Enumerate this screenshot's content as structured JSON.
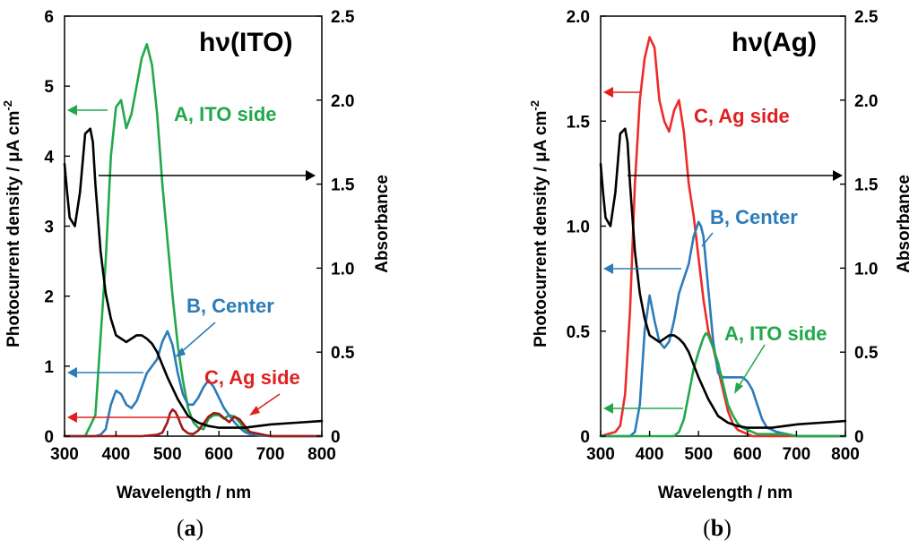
{
  "chart_data": [
    {
      "type": "line",
      "panel": "a",
      "panel_label_open": "(",
      "panel_label_letter": "a",
      "panel_label_close": ")",
      "title": "hν(ITO)",
      "xlabel": "Wavelength / nm",
      "ylabel": "Photocurrent density / μA cm",
      "ylabel_superscript": "-2",
      "y2label": "Absorbance",
      "xlim": [
        300,
        800
      ],
      "ylim": [
        0,
        6
      ],
      "y2lim": [
        0,
        2.5
      ],
      "xticks": [
        "300",
        "400",
        "500",
        "600",
        "700",
        "800"
      ],
      "yticks": [
        "0",
        "1",
        "2",
        "3",
        "4",
        "5",
        "6"
      ],
      "y2ticks": [
        "0",
        "0.5",
        "1.0",
        "1.5",
        "2.0",
        "2.5"
      ],
      "series": [
        {
          "name": "A, ITO side",
          "color": "#22a84a",
          "axis": "left",
          "x": [
            300,
            340,
            360,
            380,
            390,
            400,
            410,
            420,
            430,
            440,
            450,
            460,
            470,
            480,
            490,
            500,
            510,
            520,
            530,
            540,
            550,
            560,
            570,
            580,
            590,
            600,
            610,
            620,
            630,
            640,
            650,
            660,
            680,
            700,
            800
          ],
          "y": [
            0,
            0,
            0.3,
            2.5,
            4.0,
            4.7,
            4.8,
            4.4,
            4.6,
            5.0,
            5.4,
            5.6,
            5.3,
            4.6,
            3.6,
            2.8,
            2.0,
            1.3,
            0.8,
            0.4,
            0.2,
            0.12,
            0.1,
            0.25,
            0.3,
            0.3,
            0.25,
            0.3,
            0.28,
            0.2,
            0.1,
            0.05,
            0.02,
            0,
            0
          ]
        },
        {
          "name": "B, Center",
          "color": "#2b7cb8",
          "axis": "left",
          "x": [
            300,
            360,
            370,
            380,
            390,
            400,
            410,
            420,
            430,
            440,
            450,
            460,
            470,
            480,
            490,
            500,
            510,
            520,
            530,
            540,
            550,
            560,
            570,
            580,
            590,
            600,
            610,
            620,
            630,
            640,
            650,
            660,
            680,
            700,
            800
          ],
          "y": [
            0,
            0,
            0.02,
            0.1,
            0.45,
            0.65,
            0.6,
            0.45,
            0.4,
            0.5,
            0.7,
            0.9,
            1.0,
            1.1,
            1.35,
            1.5,
            1.3,
            0.9,
            0.6,
            0.45,
            0.45,
            0.55,
            0.7,
            0.8,
            0.7,
            0.55,
            0.4,
            0.3,
            0.2,
            0.12,
            0.06,
            0.03,
            0.01,
            0,
            0
          ]
        },
        {
          "name": "C, Ag side",
          "color": "#a01818",
          "axis": "left",
          "x": [
            300,
            400,
            450,
            480,
            490,
            500,
            505,
            510,
            515,
            520,
            525,
            530,
            540,
            550,
            560,
            570,
            580,
            590,
            600,
            610,
            620,
            630,
            640,
            650,
            660,
            700,
            800
          ],
          "y": [
            0,
            0,
            0,
            0.02,
            0.05,
            0.2,
            0.33,
            0.38,
            0.35,
            0.28,
            0.18,
            0.1,
            0.04,
            0.03,
            0.08,
            0.18,
            0.28,
            0.33,
            0.32,
            0.26,
            0.2,
            0.28,
            0.24,
            0.15,
            0.06,
            0,
            0
          ]
        },
        {
          "name": "Absorbance",
          "color": "#000000",
          "axis": "right",
          "x": [
            300,
            305,
            310,
            320,
            330,
            340,
            350,
            355,
            360,
            370,
            380,
            390,
            400,
            420,
            440,
            450,
            460,
            470,
            480,
            500,
            520,
            540,
            560,
            580,
            600,
            650,
            700,
            750,
            800
          ],
          "y": [
            1.62,
            1.45,
            1.3,
            1.25,
            1.45,
            1.8,
            1.83,
            1.75,
            1.5,
            1.1,
            0.85,
            0.7,
            0.6,
            0.56,
            0.6,
            0.6,
            0.58,
            0.55,
            0.5,
            0.35,
            0.22,
            0.12,
            0.08,
            0.06,
            0.05,
            0.05,
            0.07,
            0.08,
            0.09
          ]
        }
      ],
      "annotations": [
        {
          "text": "A, ITO side",
          "color": "#22a84a"
        },
        {
          "text": "B, Center",
          "color": "#2b7cb8"
        },
        {
          "text": "C, Ag side",
          "color": "#e02020"
        }
      ]
    },
    {
      "type": "line",
      "panel": "b",
      "panel_label_open": "(",
      "panel_label_letter": "b",
      "panel_label_close": ")",
      "title": "hν(Ag)",
      "xlabel": "Wavelength / nm",
      "ylabel": "Photocurrent density / μA cm",
      "ylabel_superscript": "-2",
      "y2label": "Absorbance",
      "xlim": [
        300,
        800
      ],
      "ylim": [
        0,
        2.0
      ],
      "y2lim": [
        0,
        2.5
      ],
      "xticks": [
        "300",
        "400",
        "500",
        "600",
        "700",
        "800"
      ],
      "yticks": [
        "0",
        "0.5",
        "1.0",
        "1.5",
        "2.0"
      ],
      "y2ticks": [
        "0",
        "0.5",
        "1.0",
        "1.5",
        "2.0",
        "2.5"
      ],
      "series": [
        {
          "name": "C, Ag side",
          "color": "#ee2a2a",
          "axis": "left",
          "x": [
            300,
            330,
            340,
            350,
            360,
            370,
            380,
            390,
            400,
            410,
            420,
            430,
            440,
            450,
            460,
            470,
            480,
            490,
            500,
            510,
            520,
            530,
            540,
            550,
            560,
            570,
            580,
            590,
            600,
            610,
            620,
            640,
            700,
            800
          ],
          "y": [
            0,
            0.02,
            0.05,
            0.2,
            0.6,
            1.2,
            1.6,
            1.8,
            1.9,
            1.85,
            1.6,
            1.5,
            1.45,
            1.55,
            1.6,
            1.45,
            1.2,
            1.05,
            0.85,
            0.65,
            0.5,
            0.42,
            0.32,
            0.22,
            0.12,
            0.06,
            0.03,
            0.02,
            0.01,
            0,
            0,
            0,
            0,
            0
          ]
        },
        {
          "name": "B, Center",
          "color": "#2b7cb8",
          "axis": "left",
          "x": [
            300,
            360,
            370,
            380,
            390,
            400,
            410,
            420,
            430,
            440,
            450,
            460,
            470,
            480,
            490,
            500,
            505,
            510,
            520,
            530,
            540,
            550,
            560,
            570,
            580,
            590,
            600,
            610,
            620,
            630,
            640,
            660,
            700,
            800
          ],
          "y": [
            0,
            0,
            0.02,
            0.15,
            0.5,
            0.67,
            0.55,
            0.45,
            0.42,
            0.45,
            0.55,
            0.68,
            0.75,
            0.82,
            0.95,
            1.02,
            1.0,
            0.95,
            0.7,
            0.45,
            0.3,
            0.28,
            0.28,
            0.28,
            0.28,
            0.28,
            0.26,
            0.22,
            0.15,
            0.08,
            0.04,
            0.02,
            0,
            0
          ]
        },
        {
          "name": "A, ITO side",
          "color": "#22a84a",
          "axis": "left",
          "x": [
            300,
            450,
            460,
            470,
            480,
            490,
            500,
            510,
            515,
            520,
            530,
            540,
            550,
            560,
            570,
            580,
            590,
            600,
            610,
            620,
            640,
            660,
            680,
            700,
            800
          ],
          "y": [
            0,
            0,
            0.02,
            0.08,
            0.2,
            0.32,
            0.4,
            0.47,
            0.49,
            0.48,
            0.42,
            0.35,
            0.25,
            0.15,
            0.1,
            0.06,
            0.04,
            0.03,
            0.02,
            0.01,
            0.01,
            0.01,
            0.01,
            0,
            0
          ]
        },
        {
          "name": "Absorbance",
          "color": "#000000",
          "axis": "right",
          "x": [
            300,
            305,
            310,
            320,
            330,
            340,
            350,
            355,
            360,
            370,
            380,
            390,
            400,
            420,
            440,
            450,
            460,
            470,
            480,
            500,
            520,
            540,
            560,
            580,
            600,
            650,
            700,
            750,
            800
          ],
          "y": [
            1.62,
            1.45,
            1.3,
            1.25,
            1.45,
            1.8,
            1.83,
            1.75,
            1.5,
            1.1,
            0.85,
            0.7,
            0.6,
            0.56,
            0.6,
            0.6,
            0.58,
            0.55,
            0.5,
            0.35,
            0.22,
            0.12,
            0.08,
            0.06,
            0.05,
            0.05,
            0.07,
            0.08,
            0.09
          ]
        }
      ],
      "annotations": [
        {
          "text": "C, Ag side",
          "color": "#e02020"
        },
        {
          "text": "B, Center",
          "color": "#2b7cb8"
        },
        {
          "text": "A, ITO side",
          "color": "#22a84a"
        }
      ]
    }
  ]
}
